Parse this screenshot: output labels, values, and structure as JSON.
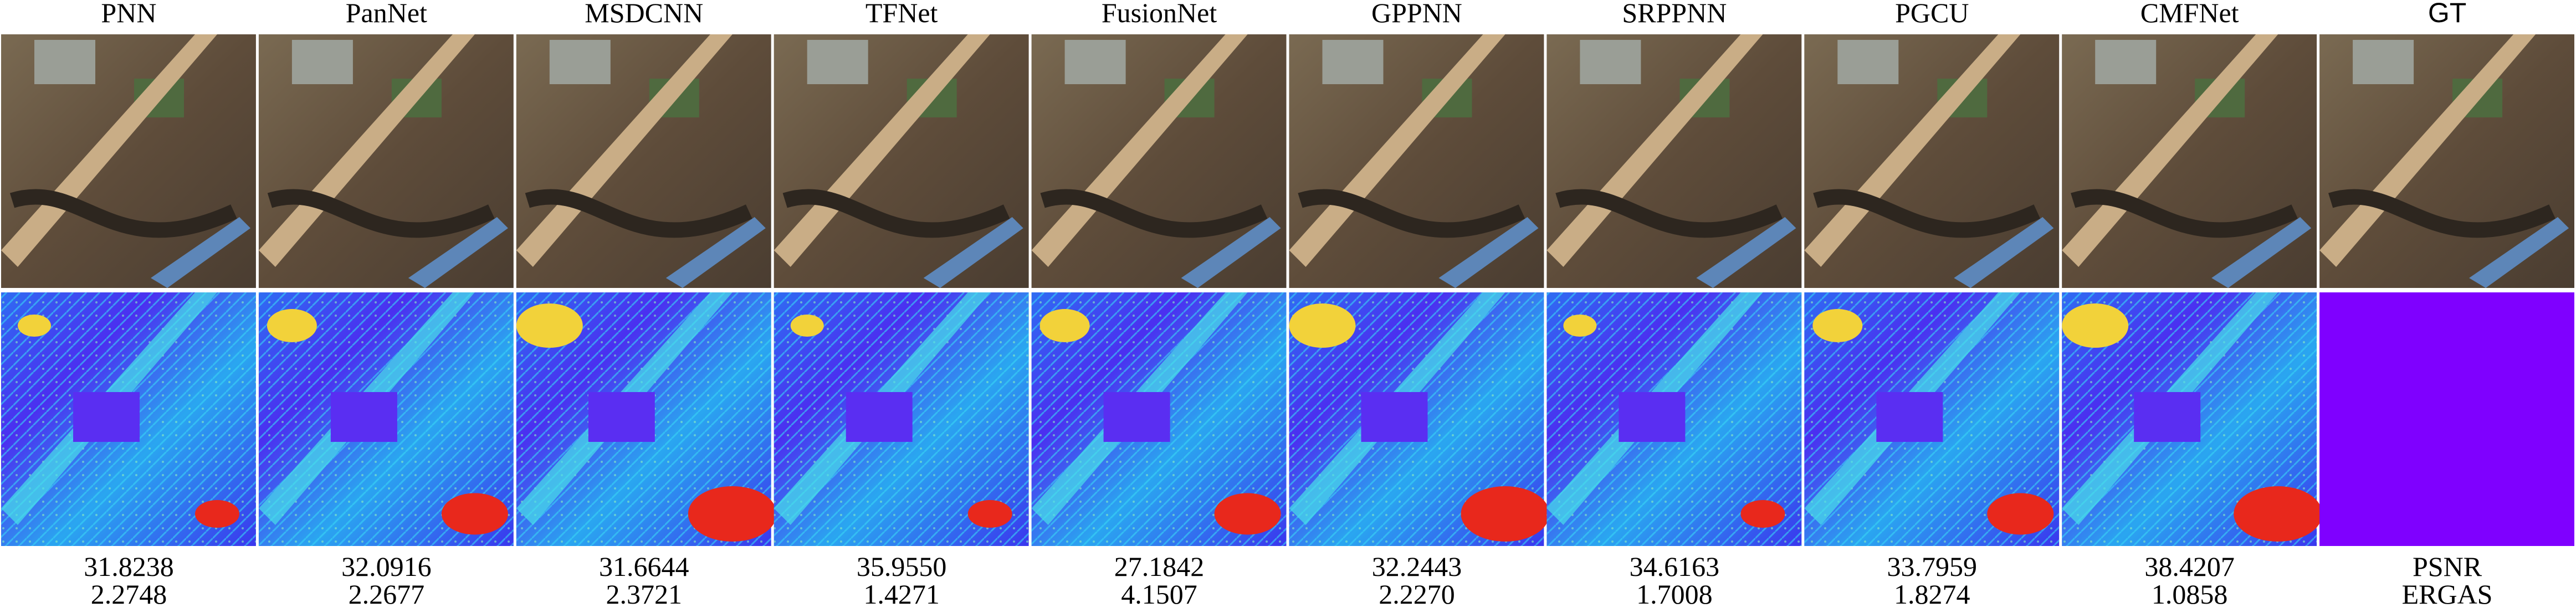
{
  "columns": [
    {
      "title": "PNN",
      "psnr": "31.8238",
      "ergas": "2.2748"
    },
    {
      "title": "PanNet",
      "psnr": "32.0916",
      "ergas": "2.2677"
    },
    {
      "title": "MSDCNN",
      "psnr": "31.6644",
      "ergas": "2.3721"
    },
    {
      "title": "TFNet",
      "psnr": "35.9550",
      "ergas": "1.4271"
    },
    {
      "title": "FusionNet",
      "psnr": "27.1842",
      "ergas": "4.1507"
    },
    {
      "title": "GPPNN",
      "psnr": "32.2443",
      "ergas": "2.2270"
    },
    {
      "title": "SRPPNN",
      "psnr": "34.6163",
      "ergas": "1.7008"
    },
    {
      "title": "PGCU",
      "psnr": "33.7959",
      "ergas": "1.8274"
    },
    {
      "title": "CMFNet",
      "psnr": "38.4207",
      "ergas": "1.0858"
    }
  ],
  "reference": {
    "title": "GT",
    "metrics": [
      "PSNR",
      "ERGAS"
    ]
  }
}
